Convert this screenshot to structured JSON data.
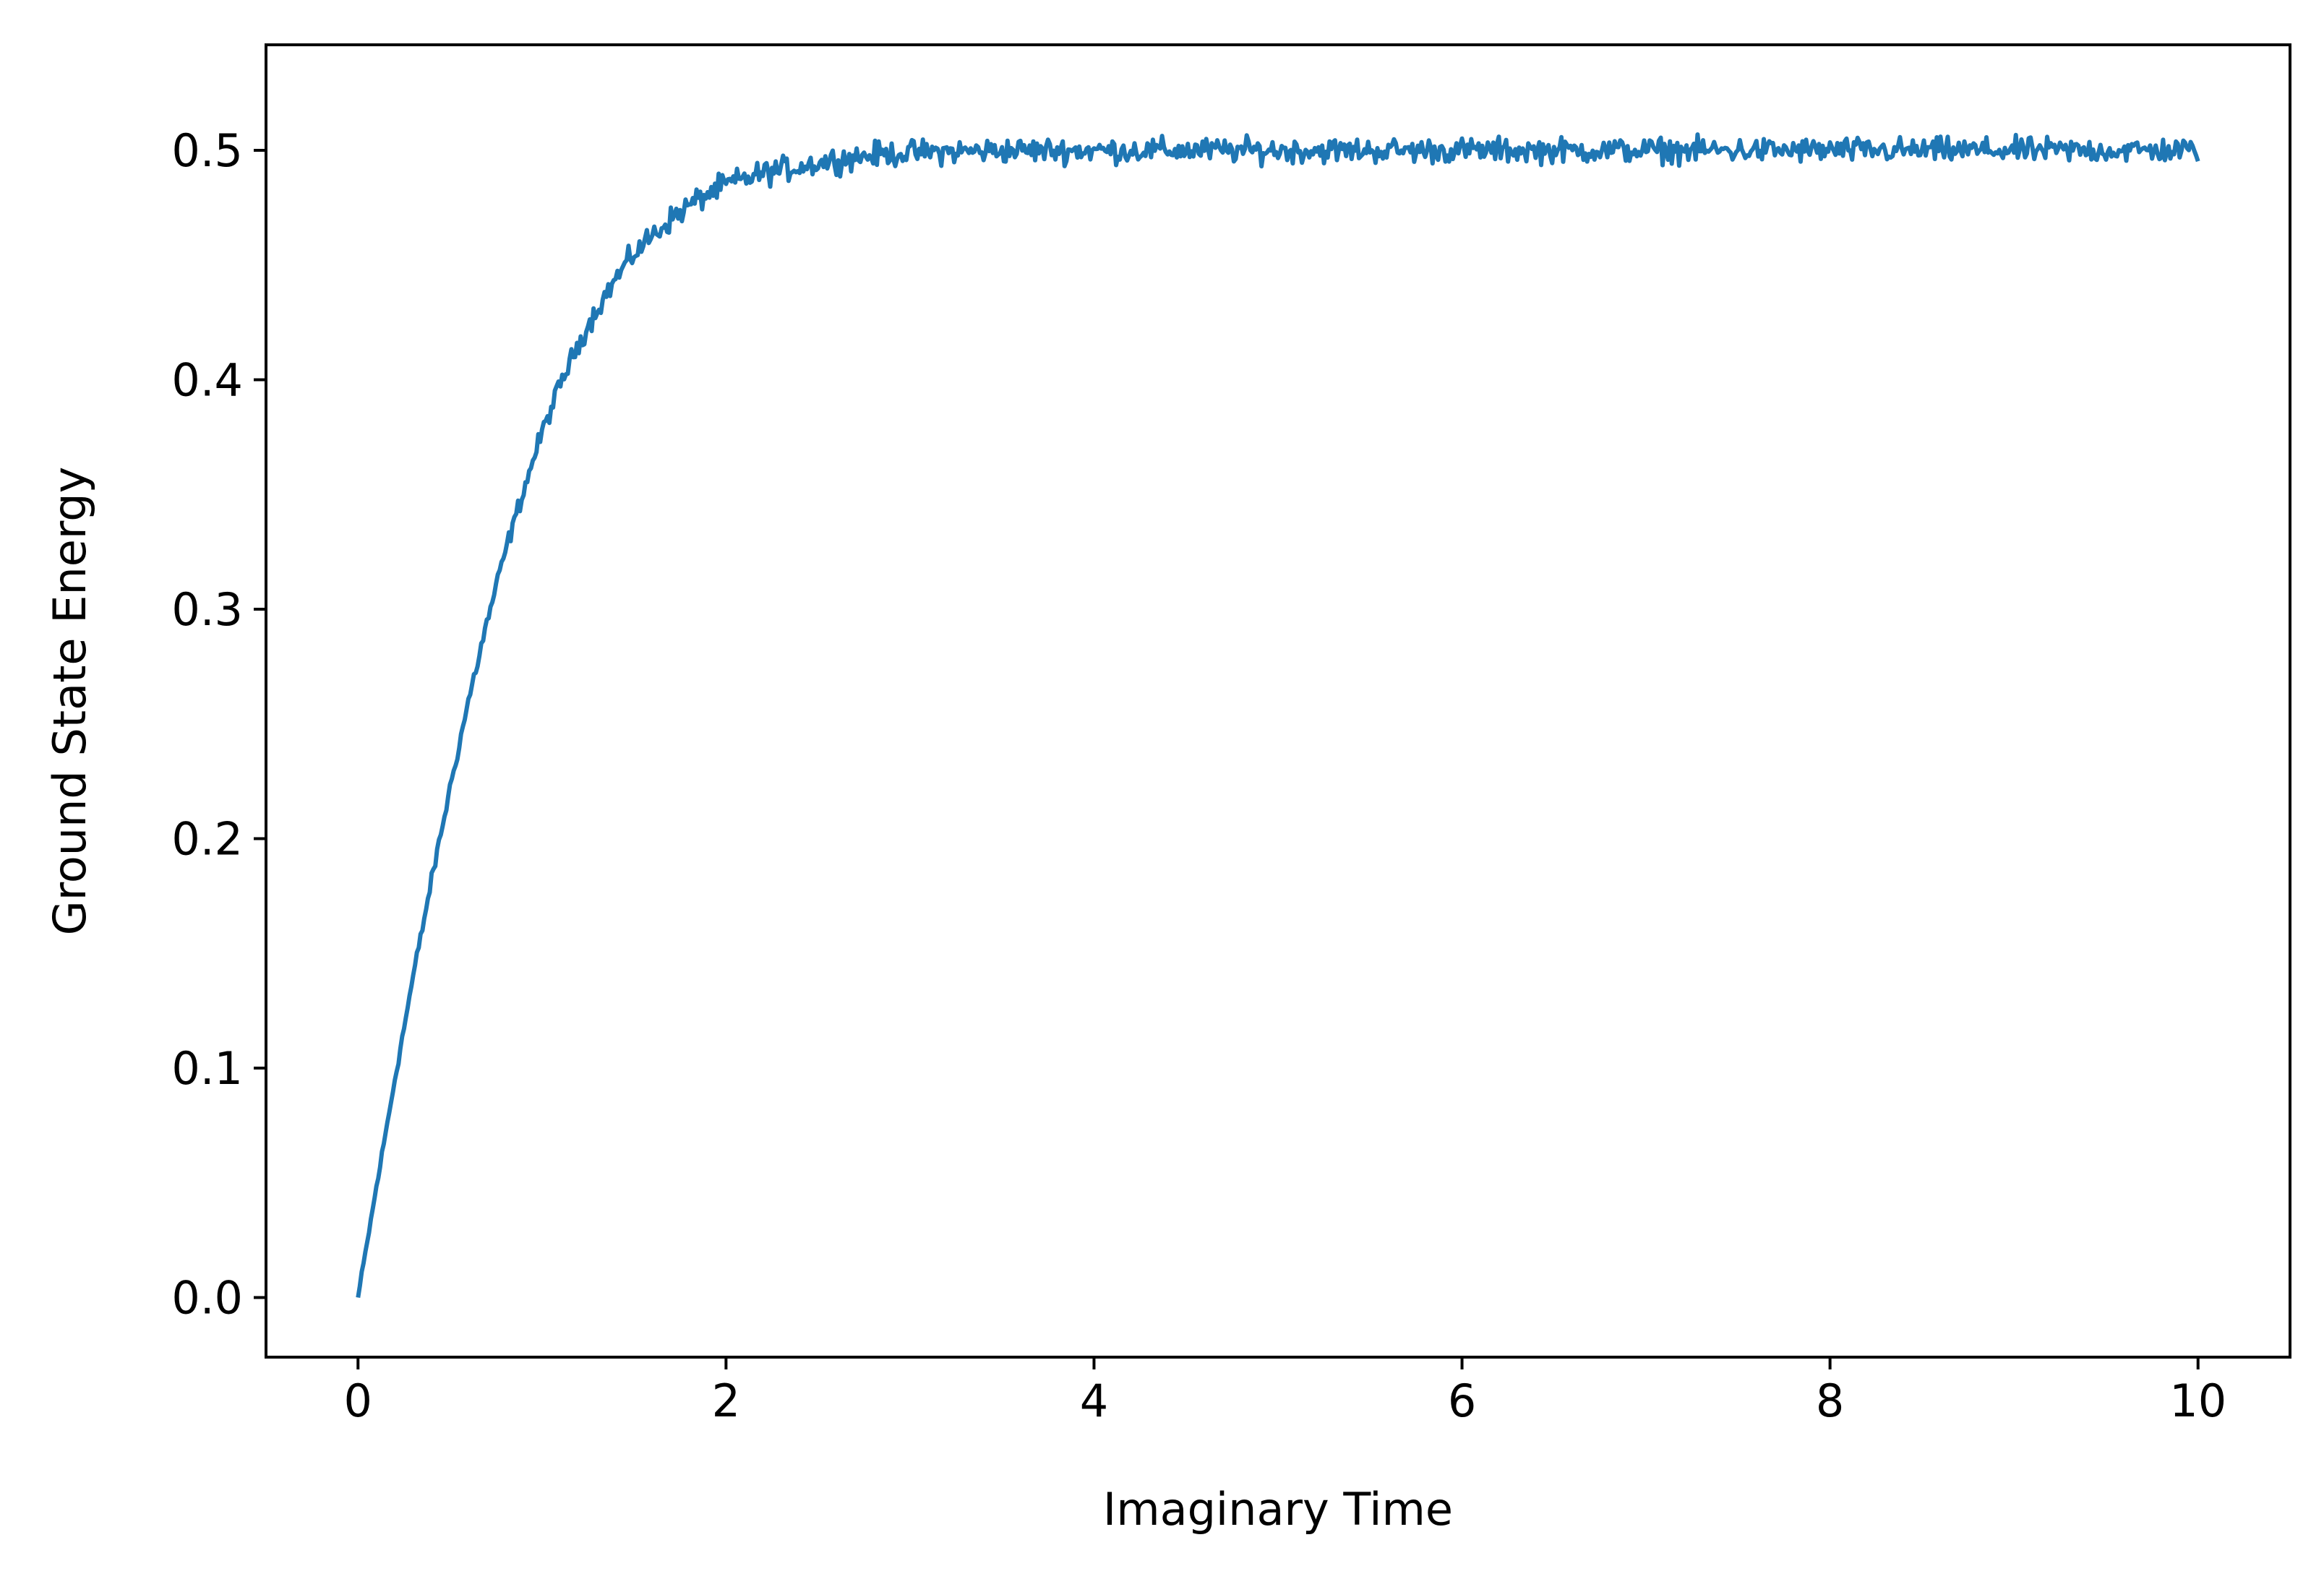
{
  "chart_data": {
    "type": "line",
    "title": "",
    "xlabel": "Imaginary Time",
    "ylabel": "Ground State Energy",
    "xlim": [
      -0.5,
      10.5
    ],
    "ylim": [
      -0.026,
      0.546
    ],
    "xticks": [
      0,
      2,
      4,
      6,
      8,
      10
    ],
    "xtick_labels": [
      "0",
      "2",
      "4",
      "6",
      "8",
      "10"
    ],
    "yticks": [
      0.0,
      0.1,
      0.2,
      0.3,
      0.4,
      0.5
    ],
    "ytick_labels": [
      "0.0",
      "0.1",
      "0.2",
      "0.3",
      "0.4",
      "0.5"
    ],
    "grid": false,
    "legend": false,
    "series": [
      {
        "color": "#1f77b4",
        "x": [
          0.0,
          0.1,
          0.2,
          0.3,
          0.4,
          0.5,
          0.6,
          0.7,
          0.8,
          0.9,
          1.0,
          1.1,
          1.2,
          1.3,
          1.4,
          1.5,
          1.6,
          1.7,
          1.8,
          1.9,
          2.0,
          2.2,
          2.4,
          2.6,
          2.8,
          3.0,
          3.5,
          4.0,
          4.5,
          5.0,
          5.5,
          6.0,
          6.5,
          7.0,
          7.5,
          8.0,
          8.5,
          9.0,
          9.5,
          10.0
        ],
        "values": [
          0.0,
          0.048,
          0.095,
          0.14,
          0.182,
          0.222,
          0.26,
          0.294,
          0.325,
          0.352,
          0.377,
          0.398,
          0.416,
          0.431,
          0.444,
          0.455,
          0.463,
          0.47,
          0.476,
          0.481,
          0.485,
          0.49,
          0.493,
          0.496,
          0.498,
          0.499,
          0.5,
          0.5,
          0.5,
          0.5,
          0.5,
          0.5,
          0.5,
          0.5,
          0.5,
          0.5,
          0.5,
          0.5,
          0.5,
          0.5
        ],
        "noise_amplitude": 0.008
      }
    ]
  }
}
